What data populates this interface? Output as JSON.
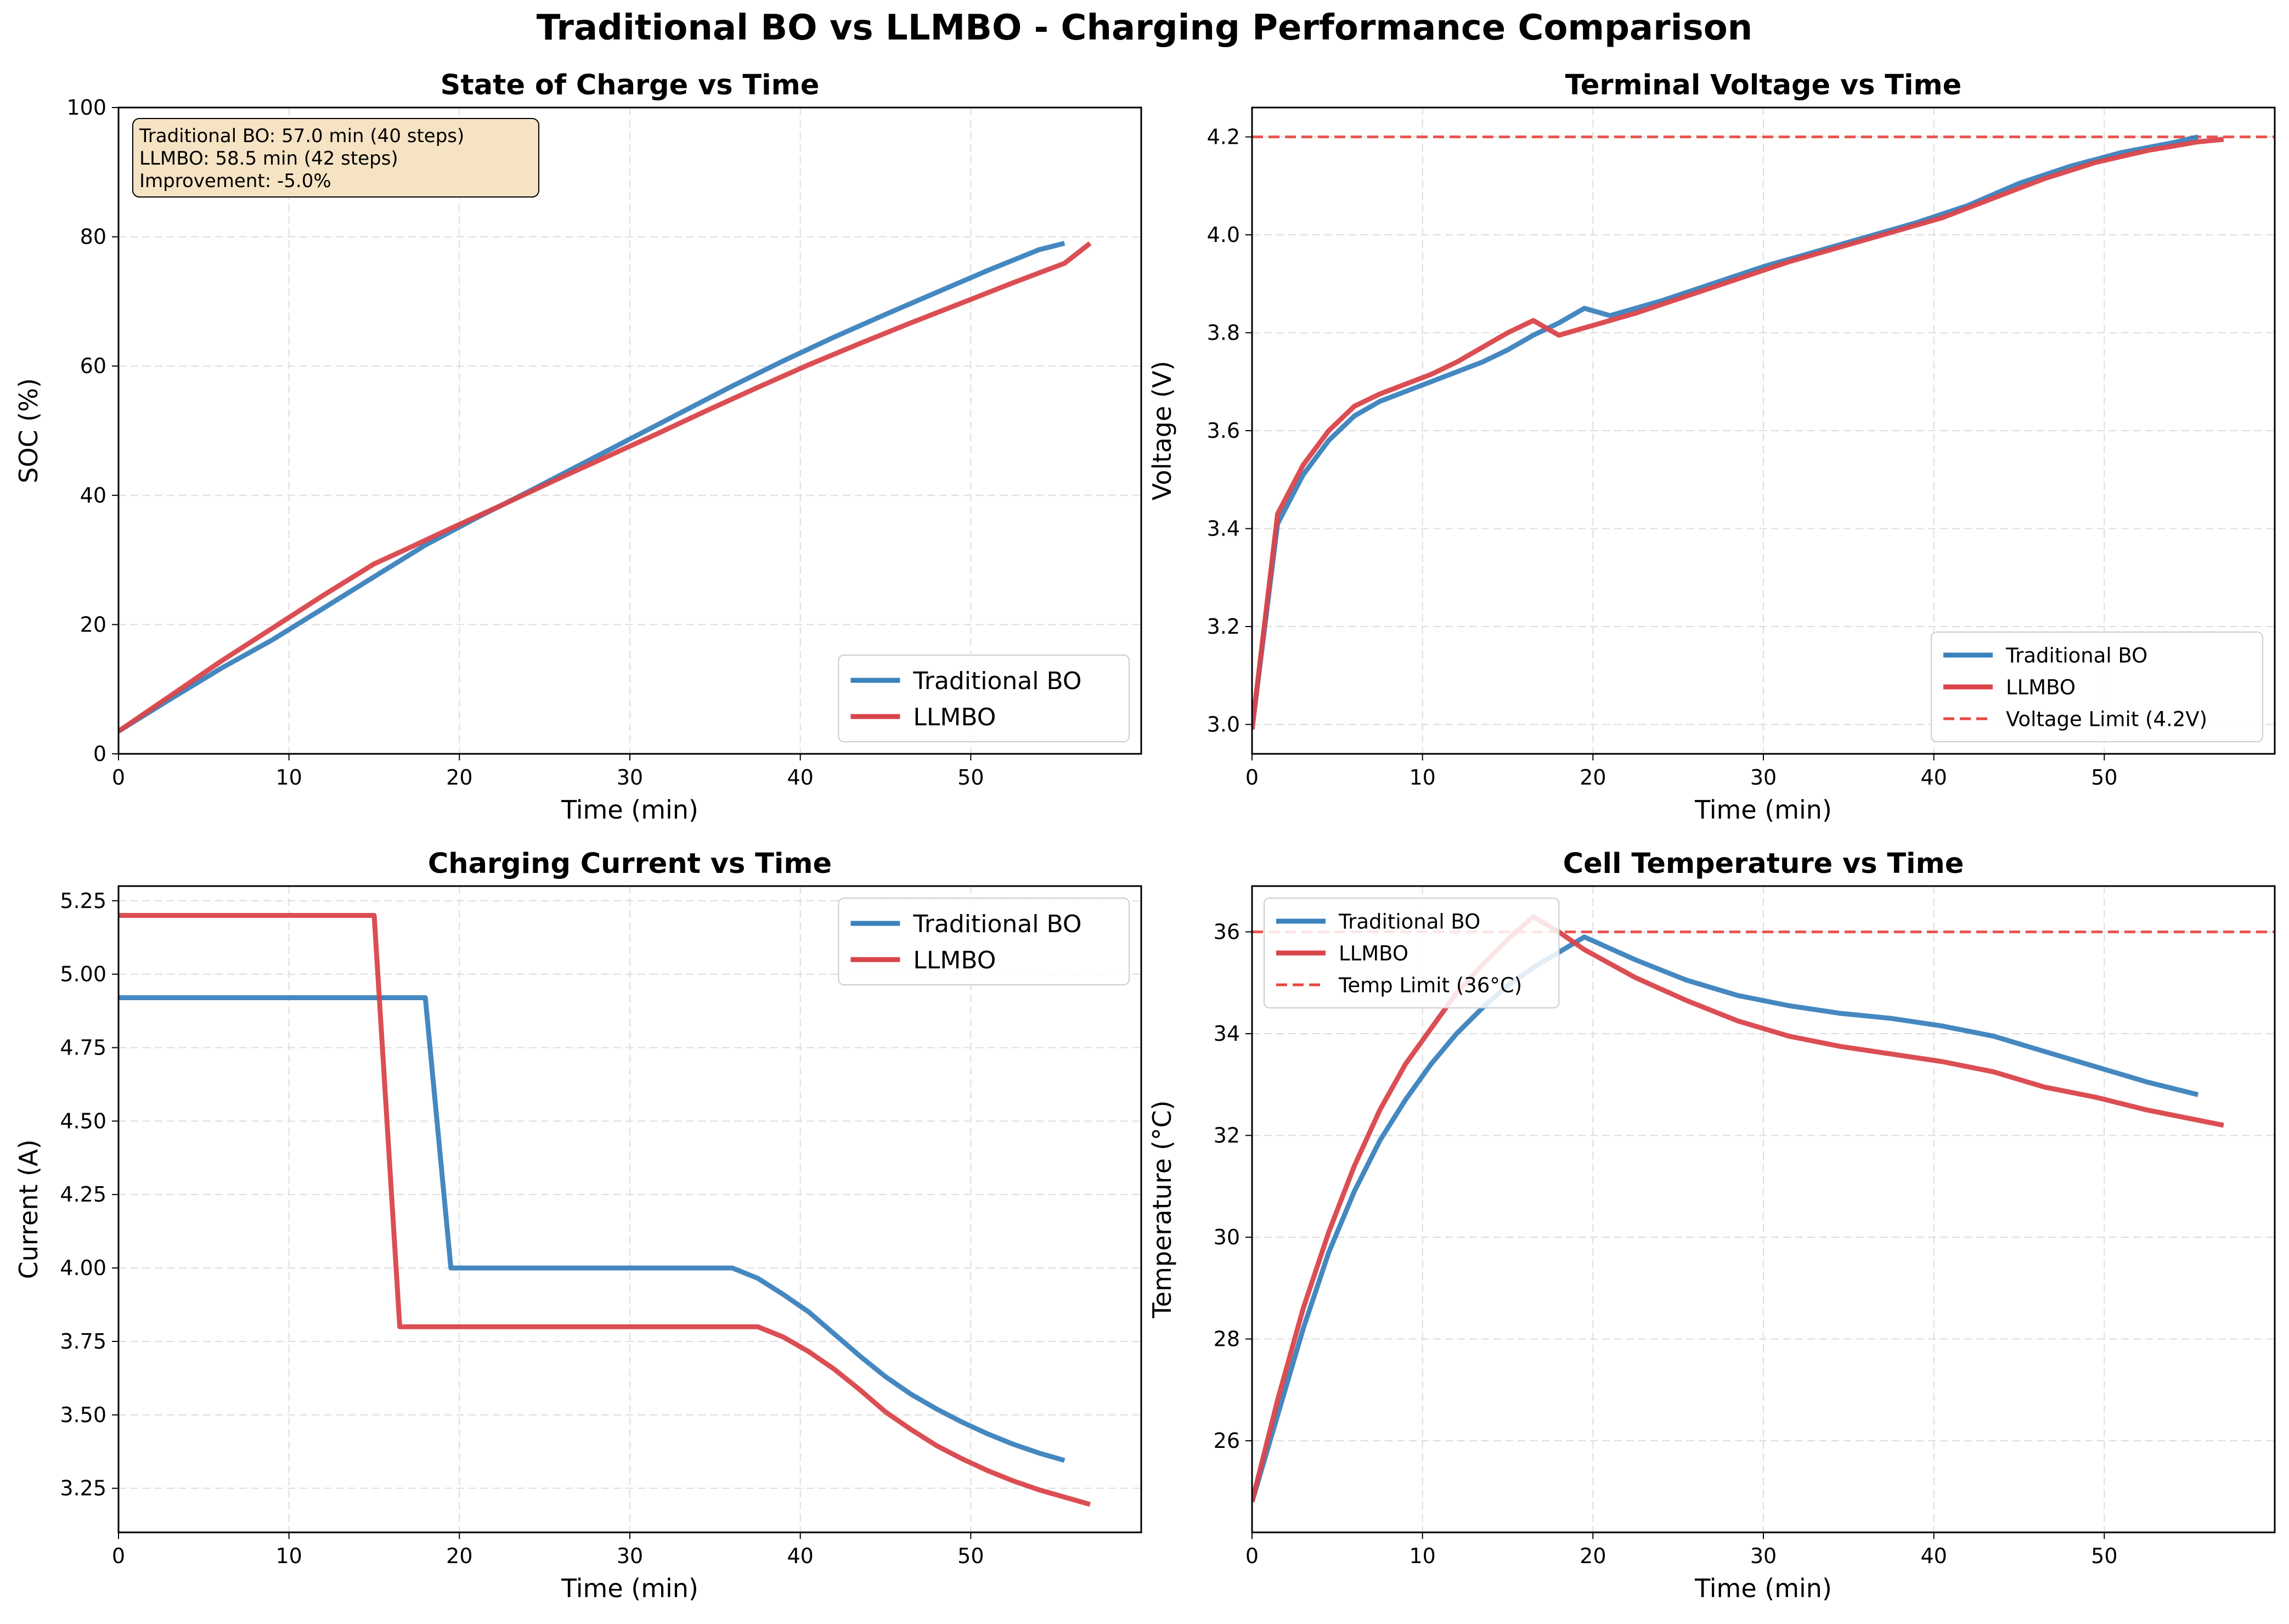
{
  "figure": {
    "title": "Traditional BO vs LLMBO - Charging Performance Comparison"
  },
  "colors": {
    "traditional": "#3b82bd",
    "llmbo": "#d9444a",
    "limit": "#e8473f",
    "grid": "#dddddd",
    "annotation_bg": "#f5e3c4"
  },
  "chart_data": [
    {
      "type": "line",
      "title": "State of Charge vs Time",
      "xlabel": "Time (min)",
      "ylabel": "SOC (%)",
      "xlim": [
        0,
        60
      ],
      "ylim": [
        0,
        100
      ],
      "xticks": [
        "0",
        "10",
        "20",
        "30",
        "40",
        "50"
      ],
      "yticks": [
        "0",
        "20",
        "40",
        "60",
        "80",
        "100"
      ],
      "grid": true,
      "legend_position": "lower-right",
      "annotation": [
        "Traditional BO: 57.0 min (40 steps)",
        "LLMBO: 58.5 min (42 steps)",
        "Improvement: -5.0%"
      ],
      "series": [
        {
          "name": "Traditional BO",
          "x": [
            0,
            3,
            6,
            9,
            12,
            15,
            18,
            21,
            24,
            27,
            30,
            33,
            36,
            39,
            42,
            45,
            48,
            51,
            54,
            55.5
          ],
          "y": [
            3.5,
            8.4,
            13.2,
            17.6,
            22.5,
            27.4,
            32.3,
            36.5,
            40.5,
            44.6,
            48.7,
            52.8,
            56.9,
            60.8,
            64.5,
            68,
            71.4,
            74.8,
            78,
            79
          ]
        },
        {
          "name": "LLMBO",
          "x": [
            0,
            3,
            6,
            9,
            12,
            15,
            16.5,
            19.5,
            22.5,
            25.5,
            28.5,
            31.5,
            34.5,
            37.5,
            40.5,
            43.5,
            46.5,
            49.5,
            52.5,
            55.5,
            57
          ],
          "y": [
            3.5,
            8.9,
            14.3,
            19.4,
            24.5,
            29.4,
            31.2,
            34.9,
            38.5,
            42.2,
            45.8,
            49.4,
            53.1,
            56.7,
            60.2,
            63.5,
            66.7,
            69.8,
            72.9,
            75.9,
            79
          ]
        }
      ]
    },
    {
      "type": "line",
      "title": "Terminal Voltage vs Time",
      "xlabel": "Time (min)",
      "ylabel": "Voltage (V)",
      "xlim": [
        0,
        60
      ],
      "ylim": [
        2.94,
        4.26
      ],
      "xticks": [
        "0",
        "10",
        "20",
        "30",
        "40",
        "50"
      ],
      "yticks": [
        "3.0",
        "3.2",
        "3.4",
        "3.6",
        "3.8",
        "4.0",
        "4.2"
      ],
      "grid": true,
      "legend_position": "lower-right",
      "hline": {
        "y": 4.2,
        "name": "Voltage Limit (4.2V)"
      },
      "series": [
        {
          "name": "Traditional BO",
          "x": [
            0,
            1.5,
            3,
            4.5,
            6,
            7.5,
            9,
            10.5,
            12,
            13.5,
            15,
            16.5,
            18,
            19.5,
            21,
            24,
            27,
            30,
            33,
            36,
            39,
            42,
            45,
            48,
            51,
            54,
            55.5
          ],
          "y": [
            2.99,
            3.41,
            3.51,
            3.58,
            3.63,
            3.66,
            3.68,
            3.7,
            3.72,
            3.74,
            3.765,
            3.795,
            3.82,
            3.85,
            3.835,
            3.865,
            3.9,
            3.935,
            3.965,
            3.995,
            4.025,
            4.06,
            4.105,
            4.14,
            4.168,
            4.188,
            4.2
          ]
        },
        {
          "name": "LLMBO",
          "x": [
            0,
            1.5,
            3,
            4.5,
            6,
            7.5,
            9,
            10.5,
            12,
            13.5,
            15,
            16.5,
            18,
            19.5,
            22.5,
            25.5,
            28.5,
            31.5,
            34.5,
            37.5,
            40.5,
            43.5,
            46.5,
            49.5,
            52.5,
            55.5,
            57
          ],
          "y": [
            2.99,
            3.43,
            3.53,
            3.6,
            3.65,
            3.675,
            3.695,
            3.715,
            3.74,
            3.77,
            3.8,
            3.825,
            3.795,
            3.81,
            3.84,
            3.875,
            3.91,
            3.945,
            3.975,
            4.005,
            4.035,
            4.075,
            4.115,
            4.148,
            4.172,
            4.19,
            4.195
          ]
        }
      ]
    },
    {
      "type": "line",
      "title": "Charging Current vs Time",
      "xlabel": "Time (min)",
      "ylabel": "Current (A)",
      "xlim": [
        0,
        60
      ],
      "ylim": [
        3.1,
        5.3
      ],
      "xticks": [
        "0",
        "10",
        "20",
        "30",
        "40",
        "50"
      ],
      "yticks": [
        "3.25",
        "3.50",
        "3.75",
        "4.00",
        "4.25",
        "4.50",
        "4.75",
        "5.00",
        "5.25"
      ],
      "grid": true,
      "legend_position": "upper-right",
      "series": [
        {
          "name": "Traditional BO",
          "x": [
            0,
            18,
            19.5,
            36,
            37.5,
            39,
            40.5,
            42,
            43.5,
            45,
            46.5,
            48,
            49.5,
            51,
            52.5,
            54,
            55.5
          ],
          "y": [
            4.92,
            4.92,
            4.0,
            4.0,
            3.965,
            3.91,
            3.85,
            3.775,
            3.7,
            3.63,
            3.57,
            3.52,
            3.475,
            3.435,
            3.4,
            3.37,
            3.345
          ]
        },
        {
          "name": "LLMBO",
          "x": [
            0,
            15,
            16.5,
            37.5,
            39,
            40.5,
            42,
            43.5,
            45,
            46.5,
            48,
            49.5,
            51,
            52.5,
            54,
            55.5,
            57
          ],
          "y": [
            5.2,
            5.2,
            3.8,
            3.8,
            3.765,
            3.715,
            3.655,
            3.585,
            3.51,
            3.45,
            3.395,
            3.35,
            3.31,
            3.275,
            3.245,
            3.22,
            3.195
          ]
        }
      ]
    },
    {
      "type": "line",
      "title": "Cell Temperature vs Time",
      "xlabel": "Time (min)",
      "ylabel": "Temperature (°C)",
      "xlim": [
        0,
        60
      ],
      "ylim": [
        24.2,
        36.9
      ],
      "xticks": [
        "0",
        "10",
        "20",
        "30",
        "40",
        "50"
      ],
      "yticks": [
        "26",
        "28",
        "30",
        "32",
        "34",
        "36"
      ],
      "grid": true,
      "legend_position": "upper-left",
      "hline": {
        "y": 36,
        "name": "Temp Limit (36°C)"
      },
      "series": [
        {
          "name": "Traditional BO",
          "x": [
            0,
            1.5,
            3,
            4.5,
            6,
            7.5,
            9,
            10.5,
            12,
            13.5,
            15,
            16.5,
            18,
            19.5,
            22.5,
            25.5,
            28.5,
            31.5,
            34.5,
            37.5,
            40.5,
            43.5,
            46.5,
            49.5,
            52.5,
            55.5
          ],
          "y": [
            24.8,
            26.5,
            28.2,
            29.7,
            30.9,
            31.9,
            32.7,
            33.4,
            34.0,
            34.5,
            34.95,
            35.3,
            35.6,
            35.9,
            35.45,
            35.05,
            34.75,
            34.55,
            34.4,
            34.3,
            34.15,
            33.95,
            33.65,
            33.35,
            33.05,
            32.8
          ]
        },
        {
          "name": "LLMBO",
          "x": [
            0,
            1.5,
            3,
            4.5,
            6,
            7.5,
            9,
            10.5,
            12,
            13.5,
            15,
            16.5,
            18,
            19.5,
            22.5,
            25.5,
            28.5,
            31.5,
            34.5,
            37.5,
            40.5,
            43.5,
            46.5,
            49.5,
            52.5,
            55.5,
            57
          ],
          "y": [
            24.8,
            26.8,
            28.6,
            30.1,
            31.4,
            32.5,
            33.4,
            34.1,
            34.8,
            35.35,
            35.85,
            36.3,
            36.0,
            35.65,
            35.1,
            34.65,
            34.25,
            33.95,
            33.75,
            33.6,
            33.45,
            33.25,
            32.95,
            32.75,
            32.5,
            32.3,
            32.2
          ]
        }
      ]
    }
  ]
}
